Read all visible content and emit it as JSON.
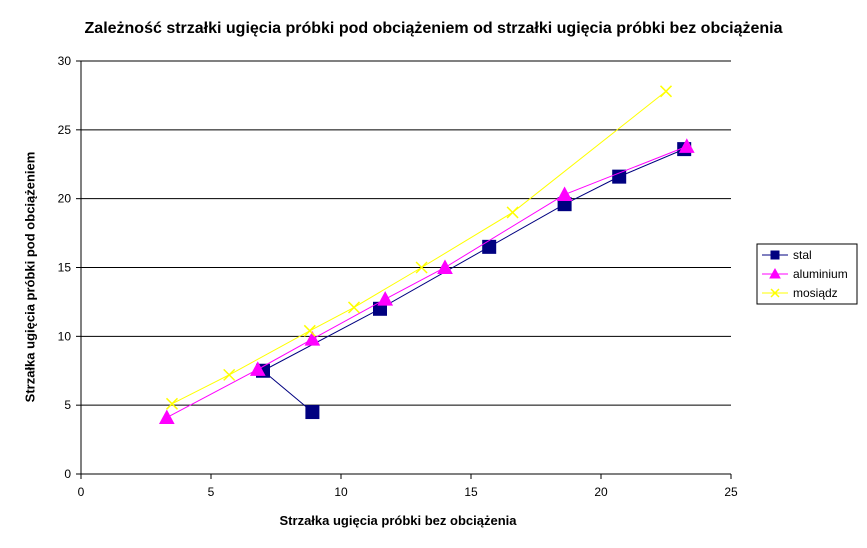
{
  "chart_data": {
    "type": "line",
    "title": "Zależność strzałki ugięcia próbki pod obciążeniem od strzałki ugięcia próbki bez obciążenia",
    "xlabel": "Strzałka ugięcia próbki bez obciążenia",
    "ylabel": "Strzałka ugięcia próbki pod obciążeniem",
    "xlim": [
      0,
      25
    ],
    "ylim": [
      0,
      30
    ],
    "xticks": [
      "0",
      "5",
      "10",
      "15",
      "20",
      "25"
    ],
    "yticks": [
      "0",
      "5",
      "10",
      "15",
      "20",
      "25",
      "30"
    ],
    "grid": "horizontal",
    "legend_position": "right",
    "series": [
      {
        "name": "stal",
        "color": "#000080",
        "marker": "square",
        "x": [
          8.9,
          7.0,
          11.5,
          15.7,
          18.6,
          20.7,
          23.2
        ],
        "y": [
          4.5,
          7.5,
          12.0,
          16.5,
          19.6,
          21.6,
          23.6
        ]
      },
      {
        "name": "aluminium",
        "color": "#ff00ff",
        "marker": "triangle",
        "x": [
          3.3,
          6.8,
          8.9,
          11.7,
          14.0,
          18.6,
          23.3
        ],
        "y": [
          4.1,
          7.6,
          9.8,
          12.7,
          15.0,
          20.3,
          23.8
        ]
      },
      {
        "name": "mosiądz",
        "color": "#ffff00",
        "marker": "x",
        "x": [
          3.5,
          5.7,
          8.8,
          10.5,
          13.1,
          16.6,
          22.5
        ],
        "y": [
          5.1,
          7.2,
          10.4,
          12.1,
          15.0,
          19.0,
          27.8
        ]
      }
    ]
  }
}
